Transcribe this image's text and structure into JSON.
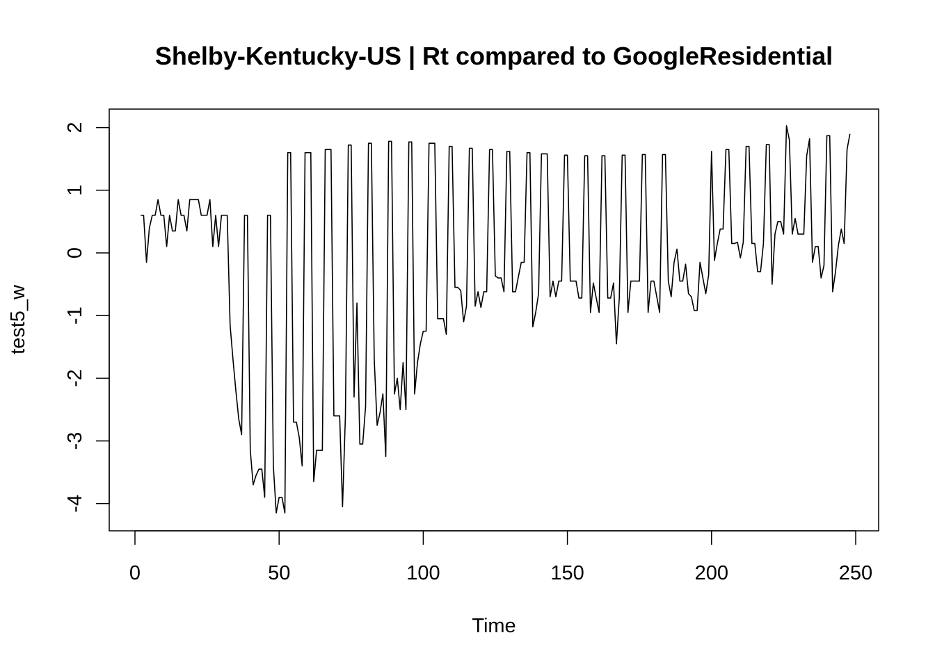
{
  "chart_data": {
    "type": "line",
    "title": "Shelby-Kentucky-US | Rt compared to GoogleResidential",
    "xlabel": "Time",
    "ylabel": "test5_w",
    "xlim": [
      1,
      248
    ],
    "ylim": [
      -4.2,
      2.05
    ],
    "x_ticks": [
      0,
      50,
      100,
      150,
      200,
      250
    ],
    "y_ticks": [
      -4,
      -3,
      -2,
      -1,
      0,
      1,
      2
    ],
    "grid": false,
    "legend": "none",
    "line_color": "#000000",
    "series": [
      {
        "x_start": 2,
        "x_step": 1,
        "values": [
          0.6,
          0.6,
          -0.15,
          0.4,
          0.6,
          0.6,
          0.85,
          0.6,
          0.6,
          0.1,
          0.6,
          0.35,
          0.35,
          0.85,
          0.6,
          0.6,
          0.35,
          0.85,
          0.85,
          0.85,
          0.85,
          0.6,
          0.6,
          0.6,
          0.85,
          0.1,
          0.6,
          0.1,
          0.6,
          0.6,
          0.6,
          -1.15,
          -1.7,
          -2.2,
          -2.65,
          -2.9,
          0.6,
          0.6,
          -3.15,
          -3.7,
          -3.55,
          -3.45,
          -3.45,
          -3.9,
          0.6,
          0.6,
          -3.4,
          -4.15,
          -3.9,
          -3.9,
          -4.15,
          1.6,
          1.6,
          -2.7,
          -2.7,
          -2.95,
          -3.4,
          1.6,
          1.6,
          1.6,
          -3.65,
          -3.15,
          -3.15,
          -3.15,
          1.65,
          1.65,
          1.65,
          -2.6,
          -2.6,
          -2.6,
          -4.05,
          -2.6,
          1.72,
          1.72,
          -2.3,
          -0.8,
          -3.05,
          -3.05,
          -2.45,
          1.75,
          1.75,
          -1.7,
          -2.75,
          -2.55,
          -2.25,
          -3.25,
          1.78,
          1.78,
          -2.25,
          -2.0,
          -2.5,
          -1.75,
          -2.5,
          1.77,
          1.77,
          -2.25,
          -1.75,
          -1.45,
          -1.25,
          -1.25,
          1.75,
          1.75,
          1.75,
          -1.05,
          -1.05,
          -1.05,
          -1.3,
          1.7,
          1.7,
          -0.55,
          -0.55,
          -0.6,
          -1.1,
          -0.85,
          1.67,
          1.67,
          -0.85,
          -0.62,
          -0.87,
          -0.62,
          -0.62,
          1.65,
          1.65,
          -0.37,
          -0.4,
          -0.4,
          -0.62,
          1.62,
          1.62,
          -0.62,
          -0.62,
          -0.38,
          -0.15,
          -0.15,
          1.6,
          1.6,
          -1.18,
          -0.95,
          -0.65,
          1.58,
          1.58,
          1.58,
          -0.7,
          -0.45,
          -0.7,
          -0.45,
          -0.45,
          1.56,
          1.56,
          -0.45,
          -0.45,
          -0.45,
          -0.72,
          -0.72,
          1.55,
          1.55,
          -0.95,
          -0.48,
          -0.72,
          -0.95,
          1.55,
          1.55,
          -0.72,
          -0.72,
          -0.48,
          -1.45,
          -0.72,
          1.56,
          1.56,
          -0.95,
          -0.45,
          -0.45,
          -0.45,
          -0.45,
          1.57,
          1.57,
          -0.95,
          -0.45,
          -0.45,
          -0.7,
          -0.95,
          1.57,
          1.57,
          -0.45,
          -0.7,
          -0.15,
          0.06,
          -0.45,
          -0.45,
          -0.18,
          -0.65,
          -0.7,
          -0.92,
          -0.92,
          -0.15,
          -0.4,
          -0.65,
          -0.35,
          1.62,
          -0.12,
          0.15,
          0.38,
          0.38,
          1.65,
          1.65,
          0.15,
          0.15,
          0.17,
          -0.08,
          0.17,
          1.7,
          1.7,
          0.15,
          0.15,
          -0.3,
          -0.3,
          0.15,
          1.73,
          1.73,
          -0.5,
          0.3,
          0.5,
          0.5,
          0.3,
          2.03,
          1.8,
          0.3,
          0.55,
          0.3,
          0.3,
          0.3,
          1.55,
          1.82,
          -0.15,
          0.1,
          0.1,
          -0.4,
          -0.2,
          1.87,
          1.87,
          -0.62,
          -0.3,
          0.12,
          0.38,
          0.15,
          1.65,
          1.9
        ]
      }
    ]
  }
}
